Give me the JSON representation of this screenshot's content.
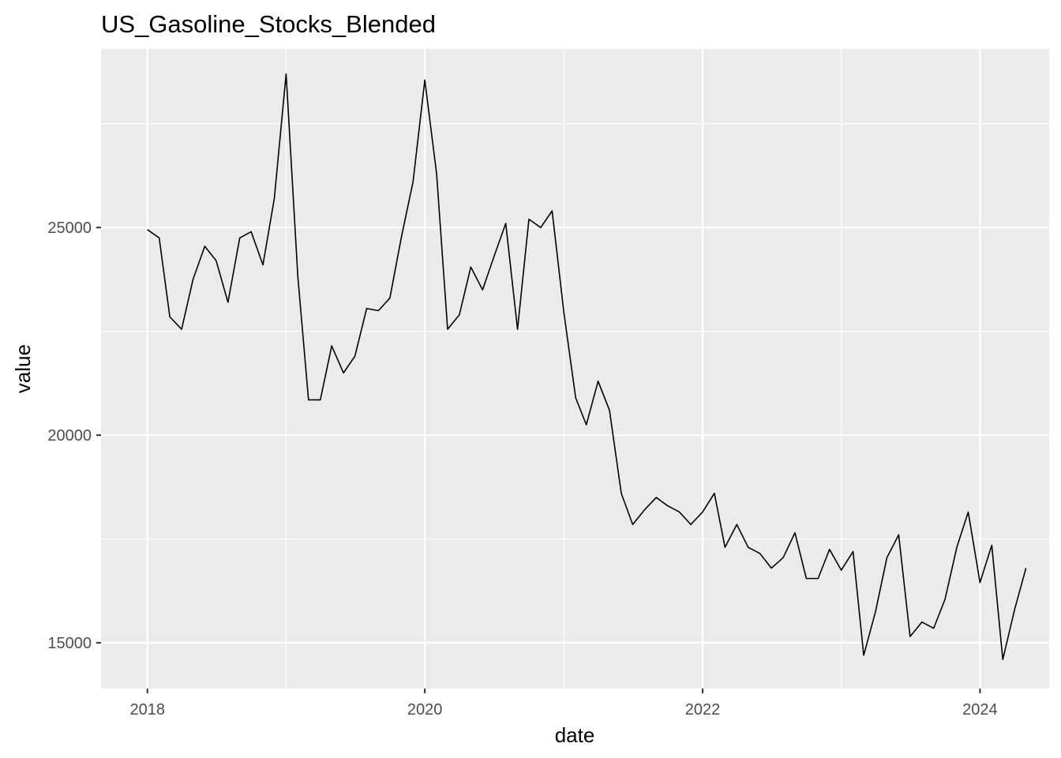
{
  "chart_data": {
    "type": "line",
    "title": "US_Gasoline_Stocks_Blended",
    "xlabel": "date",
    "ylabel": "value",
    "x_ticks": [
      "2018",
      "2020",
      "2022",
      "2024"
    ],
    "y_ticks": [
      "15000",
      "20000",
      "25000"
    ],
    "xlim": [
      "2017-09-01",
      "2024-07-01"
    ],
    "ylim": [
      13900,
      29300
    ],
    "grid": true,
    "legend": "none",
    "background_color": "#ebebeb",
    "line_color": "#000000",
    "series": [
      {
        "x": [
          "2018-01-01",
          "2018-02-01",
          "2018-03-01",
          "2018-04-01",
          "2018-05-01",
          "2018-06-01",
          "2018-07-01",
          "2018-08-01",
          "2018-09-01",
          "2018-10-01",
          "2018-11-01",
          "2018-12-01",
          "2019-01-01",
          "2019-02-01",
          "2019-03-01",
          "2019-04-01",
          "2019-05-01",
          "2019-06-01",
          "2019-07-01",
          "2019-08-01",
          "2019-09-01",
          "2019-10-01",
          "2019-11-01",
          "2019-12-01",
          "2020-01-01",
          "2020-02-01",
          "2020-03-01",
          "2020-04-01",
          "2020-05-01",
          "2020-06-01",
          "2020-07-01",
          "2020-08-01",
          "2020-09-01",
          "2020-10-01",
          "2020-11-01",
          "2020-12-01",
          "2021-01-01",
          "2021-02-01",
          "2021-03-01",
          "2021-04-01",
          "2021-05-01",
          "2021-06-01",
          "2021-07-01",
          "2021-08-01",
          "2021-09-01",
          "2021-10-01",
          "2021-11-01",
          "2021-12-01",
          "2022-01-01",
          "2022-02-01",
          "2022-03-01",
          "2022-04-01",
          "2022-05-01",
          "2022-06-01",
          "2022-07-01",
          "2022-08-01",
          "2022-09-01",
          "2022-10-01",
          "2022-11-01",
          "2022-12-01",
          "2023-01-01",
          "2023-02-01",
          "2023-03-01",
          "2023-04-01",
          "2023-05-01",
          "2023-06-01",
          "2023-07-01",
          "2023-08-01",
          "2023-09-01",
          "2023-10-01",
          "2023-11-01",
          "2023-12-01",
          "2024-01-01",
          "2024-02-01",
          "2024-03-01",
          "2024-04-01",
          "2024-05-01"
        ],
        "values": [
          24950,
          24750,
          22850,
          22550,
          23750,
          24550,
          24200,
          23200,
          24750,
          24900,
          24100,
          25700,
          28700,
          23800,
          20850,
          20850,
          22150,
          21500,
          21900,
          23050,
          23000,
          23300,
          24800,
          26100,
          28550,
          26300,
          22550,
          22900,
          24050,
          23500,
          24300,
          25100,
          22550,
          25200,
          25000,
          25400,
          22950,
          20900,
          20250,
          21300,
          20600,
          18600,
          17850,
          18200,
          18500,
          18300,
          18150,
          17850,
          18150,
          18600,
          17300,
          17850,
          17300,
          17150,
          16800,
          17050,
          17650,
          16550,
          16550,
          17250,
          16750,
          17200,
          14700,
          15750,
          17050,
          17600,
          15150,
          15500,
          15350,
          16050,
          17300,
          18150,
          16450,
          17350,
          14600,
          15800,
          16800
        ]
      }
    ]
  }
}
